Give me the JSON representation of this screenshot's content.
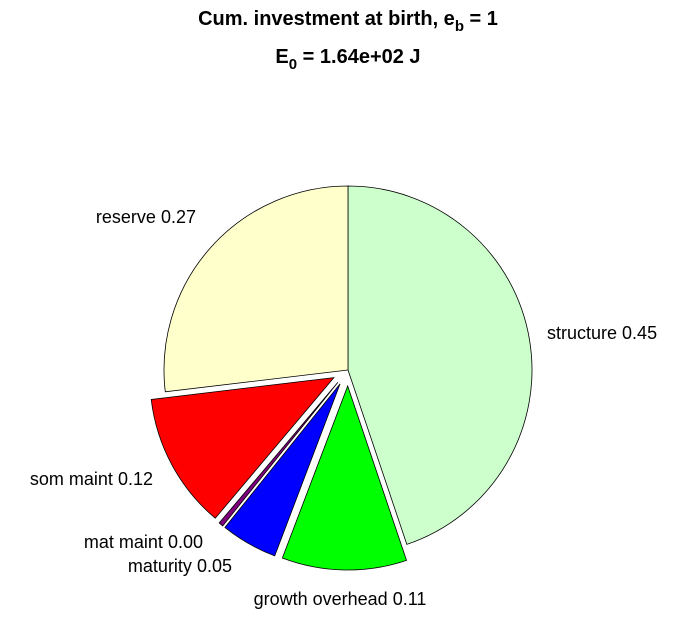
{
  "chart_data": {
    "type": "pie",
    "title": [
      "Cum. investment at birth, e",
      "b",
      " = 1"
    ],
    "subtitle": [
      "E",
      "0",
      " = 1.64e+02 J"
    ],
    "categories": [
      "structure",
      "growth overhead",
      "maturity",
      "mat maint",
      "som maint",
      "reserve"
    ],
    "values": [
      0.45,
      0.11,
      0.05,
      0.004,
      0.12,
      0.27
    ],
    "value_labels": [
      "0.45",
      "0.11",
      "0.05",
      "0.00",
      "0.12",
      "0.27"
    ],
    "colors": [
      "#ccffcc",
      "#00ff00",
      "#0000ff",
      "#7f007f",
      "#ff0000",
      "#ffffcc"
    ],
    "explode": [
      false,
      true,
      true,
      true,
      true,
      false
    ]
  }
}
